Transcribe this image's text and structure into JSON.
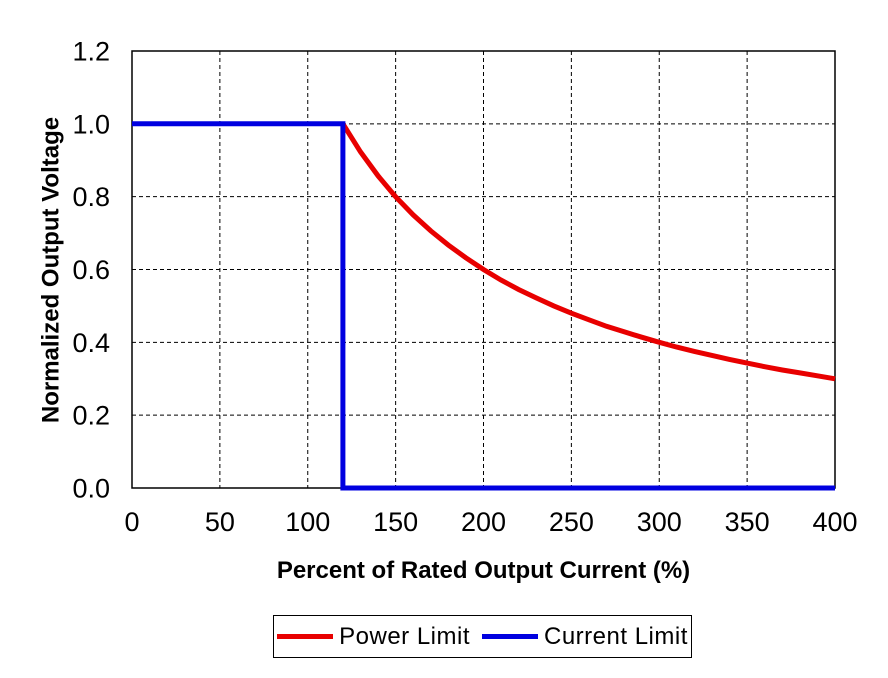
{
  "chart_data": {
    "type": "line",
    "title": "",
    "xlabel": "Percent of Rated Output Current (%)",
    "ylabel": "Normalized Output Voltage",
    "xlim": [
      0,
      400
    ],
    "ylim": [
      0,
      1.2
    ],
    "x_ticks": [
      0,
      50,
      100,
      150,
      200,
      250,
      300,
      350,
      400
    ],
    "x_tick_labels": [
      "0",
      "50",
      "100",
      "150",
      "200",
      "250",
      "300",
      "350",
      "400"
    ],
    "y_ticks": [
      0,
      0.2,
      0.4,
      0.6,
      0.8,
      1.0,
      1.2
    ],
    "y_tick_labels": [
      "0.0",
      "0.2",
      "0.4",
      "0.6",
      "0.8",
      "1.0",
      "1.2"
    ],
    "grid": "dashed",
    "grid_color": "#000000",
    "axis_color": "#000000",
    "legend_position": "bottom",
    "series": [
      {
        "name": "Power Limit",
        "color": "#e80000",
        "line_width": 5,
        "points": [
          [
            120,
            1.0
          ],
          [
            130,
            0.923
          ],
          [
            140,
            0.857
          ],
          [
            150,
            0.8
          ],
          [
            160,
            0.75
          ],
          [
            170,
            0.706
          ],
          [
            180,
            0.667
          ],
          [
            190,
            0.632
          ],
          [
            200,
            0.6
          ],
          [
            210,
            0.571
          ],
          [
            220,
            0.545
          ],
          [
            230,
            0.522
          ],
          [
            240,
            0.5
          ],
          [
            250,
            0.48
          ],
          [
            260,
            0.462
          ],
          [
            270,
            0.444
          ],
          [
            280,
            0.429
          ],
          [
            290,
            0.414
          ],
          [
            300,
            0.4
          ],
          [
            310,
            0.387
          ],
          [
            320,
            0.375
          ],
          [
            330,
            0.364
          ],
          [
            340,
            0.353
          ],
          [
            350,
            0.343
          ],
          [
            360,
            0.333
          ],
          [
            370,
            0.324
          ],
          [
            380,
            0.316
          ],
          [
            390,
            0.308
          ],
          [
            400,
            0.3
          ]
        ]
      },
      {
        "name": "Current Limit",
        "color": "#0000e0",
        "line_width": 5,
        "points": [
          [
            0,
            1.0
          ],
          [
            120,
            1.0
          ],
          [
            120,
            0
          ],
          [
            400,
            0
          ]
        ]
      }
    ]
  }
}
